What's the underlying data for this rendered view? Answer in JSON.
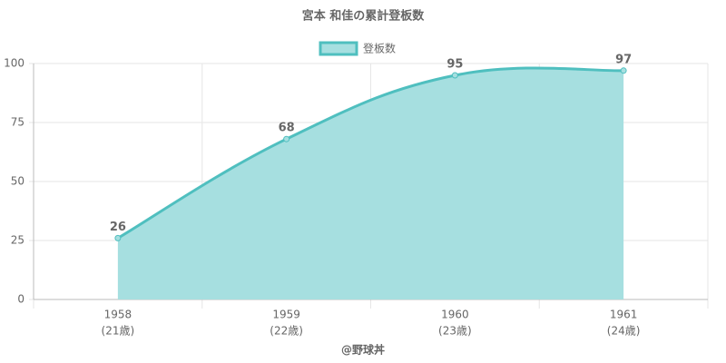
{
  "chart_data": {
    "type": "area",
    "title": "宮本 和佳の累計登板数",
    "categories": [
      [
        "1958",
        "(21歳)"
      ],
      [
        "1959",
        "(22歳)"
      ],
      [
        "1960",
        "(23歳)"
      ],
      [
        "1961",
        "(24歳)"
      ]
    ],
    "series": [
      {
        "name": "登板数",
        "color": "#4fbfbf",
        "fill": "#a6dfe0",
        "values": [
          26,
          68,
          95,
          97
        ]
      }
    ],
    "x_label": "@野球丼",
    "ylim": [
      0,
      100
    ],
    "yticks": [
      0,
      25,
      50,
      75,
      100
    ],
    "grid": true,
    "legend": "top"
  }
}
